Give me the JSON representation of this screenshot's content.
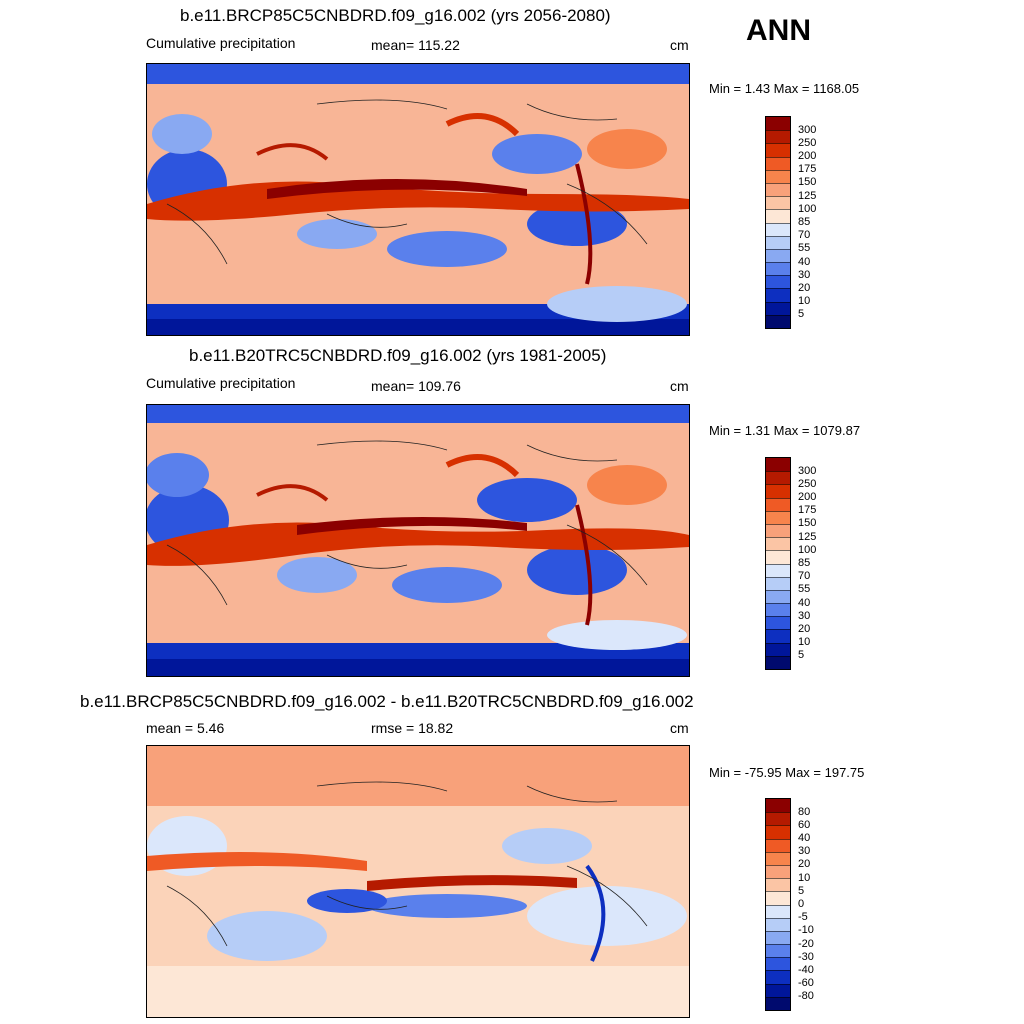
{
  "season": "ANN",
  "panels": [
    {
      "title": "b.e11.BRCP85C5CNBDRD.f09_g16.002 (yrs 2056-2080)",
      "left_text": "Cumulative precipitation",
      "center_text": "mean= 115.22",
      "units": "cm",
      "minmax": "Min =   1.43 Max = 1168.05",
      "colorbar_labels": [
        "300",
        "250",
        "200",
        "175",
        "150",
        "125",
        "100",
        "85",
        "70",
        "55",
        "40",
        "30",
        "20",
        "10",
        "5"
      ]
    },
    {
      "title": "b.e11.B20TRC5CNBDRD.f09_g16.002 (yrs 1981-2005)",
      "left_text": "Cumulative precipitation",
      "center_text": "mean= 109.76",
      "units": "cm",
      "minmax": "Min =   1.31 Max = 1079.87",
      "colorbar_labels": [
        "300",
        "250",
        "200",
        "175",
        "150",
        "125",
        "100",
        "85",
        "70",
        "55",
        "40",
        "30",
        "20",
        "10",
        "5"
      ]
    },
    {
      "title": "b.e11.BRCP85C5CNBDRD.f09_g16.002 - b.e11.B20TRC5CNBDRD.f09_g16.002",
      "left_text": "mean =   5.46",
      "center_text": "rmse =  18.82",
      "units": "cm",
      "minmax": "Min = -75.95 Max = 197.75",
      "colorbar_labels": [
        "80",
        "60",
        "40",
        "30",
        "20",
        "10",
        "5",
        "0",
        "-5",
        "-10",
        "-20",
        "-30",
        "-40",
        "-60",
        "-80"
      ]
    }
  ],
  "colorbar_colors": [
    "#8b0000",
    "#b51a00",
    "#d73000",
    "#ef5a25",
    "#f7844c",
    "#f8a17a",
    "#fbc5a5",
    "#fde7d6",
    "#dbe7fb",
    "#b6cdf7",
    "#89a9f2",
    "#5a80ec",
    "#2d55de",
    "#0d2fc0",
    "#00169a",
    "#000a6e"
  ]
}
